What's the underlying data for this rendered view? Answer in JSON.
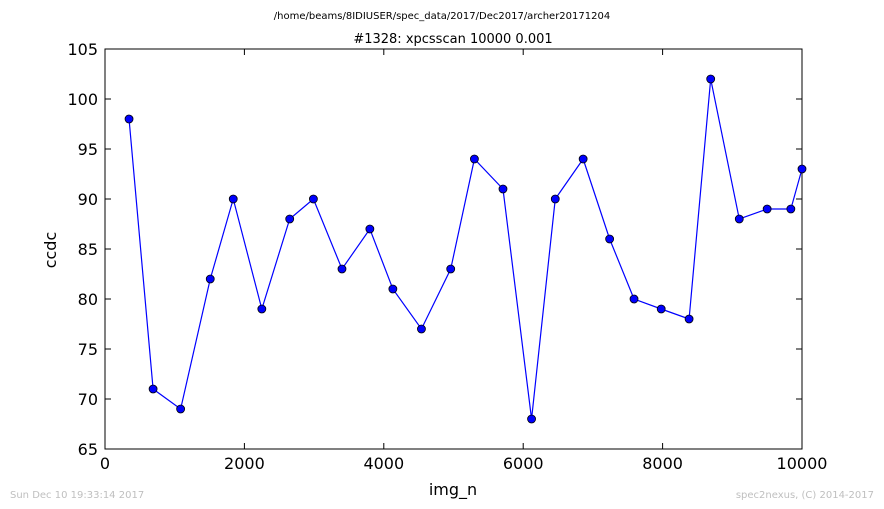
{
  "chart_data": {
    "type": "line",
    "suptitle": "/home/beams/8IDIUSER/spec_data/2017/Dec2017/archer20171204",
    "title": "#1328: xpcsscan 10000 0.001",
    "xlabel": "img_n",
    "ylabel": "ccdc",
    "xlim": [
      0,
      10000
    ],
    "ylim": [
      65,
      105
    ],
    "xticks": [
      0,
      2000,
      4000,
      6000,
      8000,
      10000
    ],
    "yticks": [
      65,
      70,
      75,
      80,
      85,
      90,
      95,
      100,
      105
    ],
    "grid": false,
    "marker": "circle",
    "colors": {
      "line": "#0000ff",
      "marker_edge": "#000000"
    },
    "series": [
      {
        "x": [
          345,
          690,
          1085,
          1510,
          1840,
          2250,
          2650,
          2990,
          3400,
          3800,
          4130,
          4540,
          4960,
          5300,
          5710,
          6120,
          6460,
          6860,
          7240,
          7590,
          7980,
          8380,
          8690,
          9100,
          9500,
          9840,
          10000
        ],
        "y": [
          98,
          71,
          69,
          82,
          90,
          79,
          88,
          90,
          83,
          87,
          81,
          77,
          83,
          94,
          91,
          68,
          90,
          94,
          86,
          80,
          79,
          78,
          102,
          88,
          89,
          89,
          93
        ]
      }
    ]
  },
  "footer": {
    "timestamp": "Sun Dec 10 19:33:14 2017",
    "credit": "spec2nexus, (C) 2014-2017"
  }
}
